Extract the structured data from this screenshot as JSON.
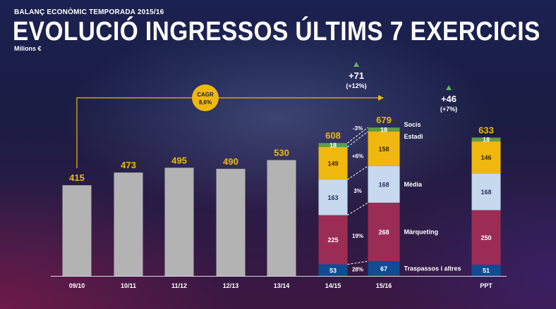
{
  "header": {
    "overline": "BALANÇ ECONÒMIC TEMPORADA 2015/16",
    "title": "EVOLUCIÓ INGRESSOS ÚLTIMS 7 EXERCICIS",
    "unit": "Milions €"
  },
  "chart_data": {
    "type": "bar",
    "title": "EVOLUCIÓ INGRESSOS ÚLTIMS 7 EXERCICIS",
    "ylabel": "Milions €",
    "ylim": [
      0,
      700
    ],
    "categories": [
      "09/10",
      "10/11",
      "11/12",
      "12/13",
      "13/14",
      "14/15",
      "15/16",
      "PPT"
    ],
    "totals": [
      415,
      473,
      495,
      490,
      530,
      608,
      679,
      633
    ],
    "segment_names": [
      "Traspassos i altres",
      "Màrqueting",
      "Mèdia",
      "Estadi",
      "Socis"
    ],
    "segment_colors": [
      "#0f4c92",
      "#9b2d55",
      "#c6d9ee",
      "#f0b80e",
      "#5f9e46"
    ],
    "stacked": [
      {
        "category": "14/15",
        "values": [
          53,
          225,
          163,
          149,
          18
        ]
      },
      {
        "category": "15/16",
        "values": [
          67,
          268,
          168,
          158,
          18
        ]
      },
      {
        "category": "PPT",
        "values": [
          51,
          250,
          168,
          146,
          18
        ]
      }
    ],
    "growth_labels": {
      "Socis": "-3%",
      "Estadi": "+6%",
      "Mèdia": "3%",
      "Màrqueting": "19%",
      "Traspassos i altres": "28%"
    },
    "cagr": {
      "label": "CAGR",
      "value": "8,6%"
    },
    "changes": [
      {
        "delta": "+71",
        "pct": "(+12%)"
      },
      {
        "delta": "+46",
        "pct": "(+7%)"
      }
    ],
    "colors": {
      "plain_bar": "#b3b3b3",
      "total_label": "#f0b80e",
      "arrow": "#f0b80e",
      "triangle": "#5cb85c"
    }
  }
}
